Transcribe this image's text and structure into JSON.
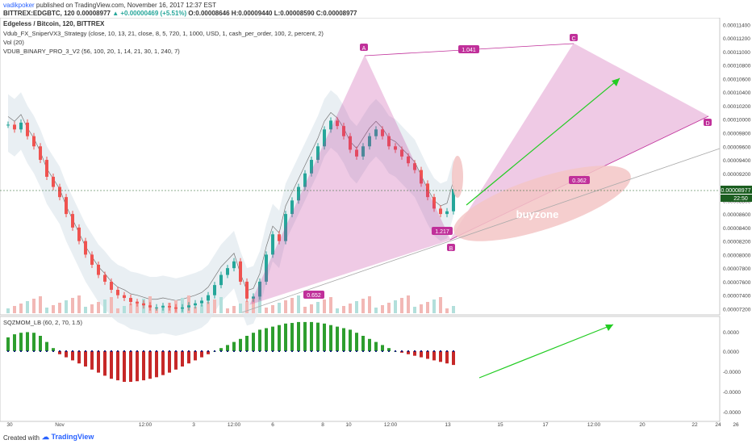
{
  "header": {
    "username": "vadikpoker",
    "published_text": "published on TradingView.com, November 16, 2017 12:37 EST",
    "symbol": "BITTREX:EDGBTC, 120",
    "open_price": "0.00008977",
    "change": "▲ +0.00000469 (+5.51%)",
    "ohlc": "O:0.00008646 H:0.00009440 L:0.00008590 C:0.00008977"
  },
  "legend": {
    "title": "Edgeless / Bitcoin, 120, BITTREX",
    "strategy": "Vdub_FX_SniperVX3_Strategy (close, 10, 13, 21, close, 8, 5, 720, 1, 1000, USD, 1, cash_per_order, 100, 2, percent, 2)",
    "vol": "Vol (20)",
    "binary": "VDUB_BINARY_PRO_3_V2 (56, 100, 20, 1, 14, 21, 30, 1, 240, 7)"
  },
  "indicator": {
    "name": "SQZMOM_LB (60, 2, 70, 1.5)"
  },
  "annotations": {
    "point_a": "A",
    "point_b": "B",
    "point_c": "C",
    "point_d": "D",
    "ratio_ac": "1.041",
    "ratio_bd": "0.362",
    "ratio_xb": "1.217",
    "ratio_xa": "0.652",
    "buyzone": "buyzone"
  },
  "price_axis": {
    "ticks": [
      "0.00011400",
      "0.00011200",
      "0.00011000",
      "0.00010800",
      "0.00010600",
      "0.00010400",
      "0.00010200",
      "0.00010000",
      "0.00009800",
      "0.00009600",
      "0.00009400",
      "0.00009200",
      "0.00009000",
      "0.00008800",
      "0.00008600",
      "0.00008400",
      "0.00008200",
      "0.00008000",
      "0.00007800",
      "0.00007600",
      "0.00007400",
      "0.00007200"
    ],
    "current_price": "0.00008977",
    "countdown": "22:50"
  },
  "indicator_axis": {
    "ticks": [
      "0.0000",
      "0.0000",
      "-0.0000",
      "-0.0000",
      "-0.0000"
    ]
  },
  "time_axis": {
    "ticks": [
      "30",
      "Nov",
      "12:00",
      "3",
      "12:00",
      "6",
      "8",
      "10",
      "12:00",
      "13",
      "15",
      "17",
      "12:00",
      "20",
      "22",
      "24",
      "26"
    ]
  },
  "chart_data": {
    "type": "candlestick",
    "symbol": "EDGBTC",
    "interval": "120",
    "ylim": [
      7.11e-05,
      0.000115
    ],
    "candles_close": [
      9.92e-05,
      9.85e-05,
      9.95e-05,
      9.75e-05,
      9.6e-05,
      9.4e-05,
      9.15e-05,
      9e-05,
      8.85e-05,
      8.6e-05,
      8.4e-05,
      8.2e-05,
      8e-05,
      7.85e-05,
      7.7e-05,
      7.6e-05,
      7.48e-05,
      7.4e-05,
      7.36e-05,
      7.3e-05,
      7.28e-05,
      7.25e-05,
      7.22e-05,
      7.22e-05,
      7.24e-05,
      7.22e-05,
      7.2e-05,
      7.22e-05,
      7.25e-05,
      7.28e-05,
      7.32e-05,
      7.4e-05,
      7.55e-05,
      7.7e-05,
      7.8e-05,
      7.9e-05,
      7.6e-05,
      7.35e-05,
      7.38e-05,
      7.6e-05,
      8e-05,
      8.3e-05,
      8.2e-05,
      8.6e-05,
      8.8e-05,
      9e-05,
      9.2e-05,
      9.4e-05,
      9.6e-05,
      9.85e-05,
      9.98e-05,
      9.9e-05,
      9.75e-05,
      9.55e-05,
      9.45e-05,
      9.6e-05,
      9.75e-05,
      9.85e-05,
      9.75e-05,
      9.6e-05,
      9.55e-05,
      9.45e-05,
      9.35e-05,
      9.25e-05,
      9.05e-05,
      8.85e-05,
      8.68e-05,
      8.6e-05,
      8.64e-05,
      8.97e-05
    ],
    "last_ohlc": {
      "open": 8.646e-05,
      "high": 9.44e-05,
      "low": 8.59e-05,
      "close": 8.977e-05
    },
    "squeeze_momentum": [
      0.45,
      0.55,
      0.6,
      0.62,
      0.6,
      0.5,
      0.3,
      0.1,
      -0.1,
      -0.2,
      -0.3,
      -0.4,
      -0.5,
      -0.6,
      -0.7,
      -0.8,
      -0.9,
      -0.95,
      -1.0,
      -1.0,
      -0.98,
      -0.95,
      -0.9,
      -0.85,
      -0.78,
      -0.7,
      -0.6,
      -0.5,
      -0.4,
      -0.3,
      -0.2,
      -0.1,
      0.0,
      0.1,
      0.2,
      0.3,
      0.4,
      0.5,
      0.6,
      0.7,
      0.75,
      0.8,
      0.85,
      0.9,
      0.92,
      0.95,
      0.95,
      0.95,
      0.93,
      0.9,
      0.85,
      0.8,
      0.75,
      0.7,
      0.6,
      0.5,
      0.4,
      0.3,
      0.2,
      0.1,
      0.0,
      -0.05,
      -0.1,
      -0.15,
      -0.2,
      -0.25,
      -0.3,
      -0.35,
      -0.4,
      -0.45
    ],
    "harmonic_pattern": {
      "points": [
        "X",
        "A",
        "B",
        "C",
        "D"
      ],
      "ratios": {
        "XB": 1.217,
        "AC": 1.041,
        "BD": 0.362,
        "XA": 0.652
      }
    },
    "colors": {
      "up": "#26a69a",
      "down": "#ef5350",
      "pattern": "#c0309a",
      "zone": "#f3c6c6",
      "arrow": "#22cc22",
      "price_tag": "#1b5e20"
    }
  }
}
